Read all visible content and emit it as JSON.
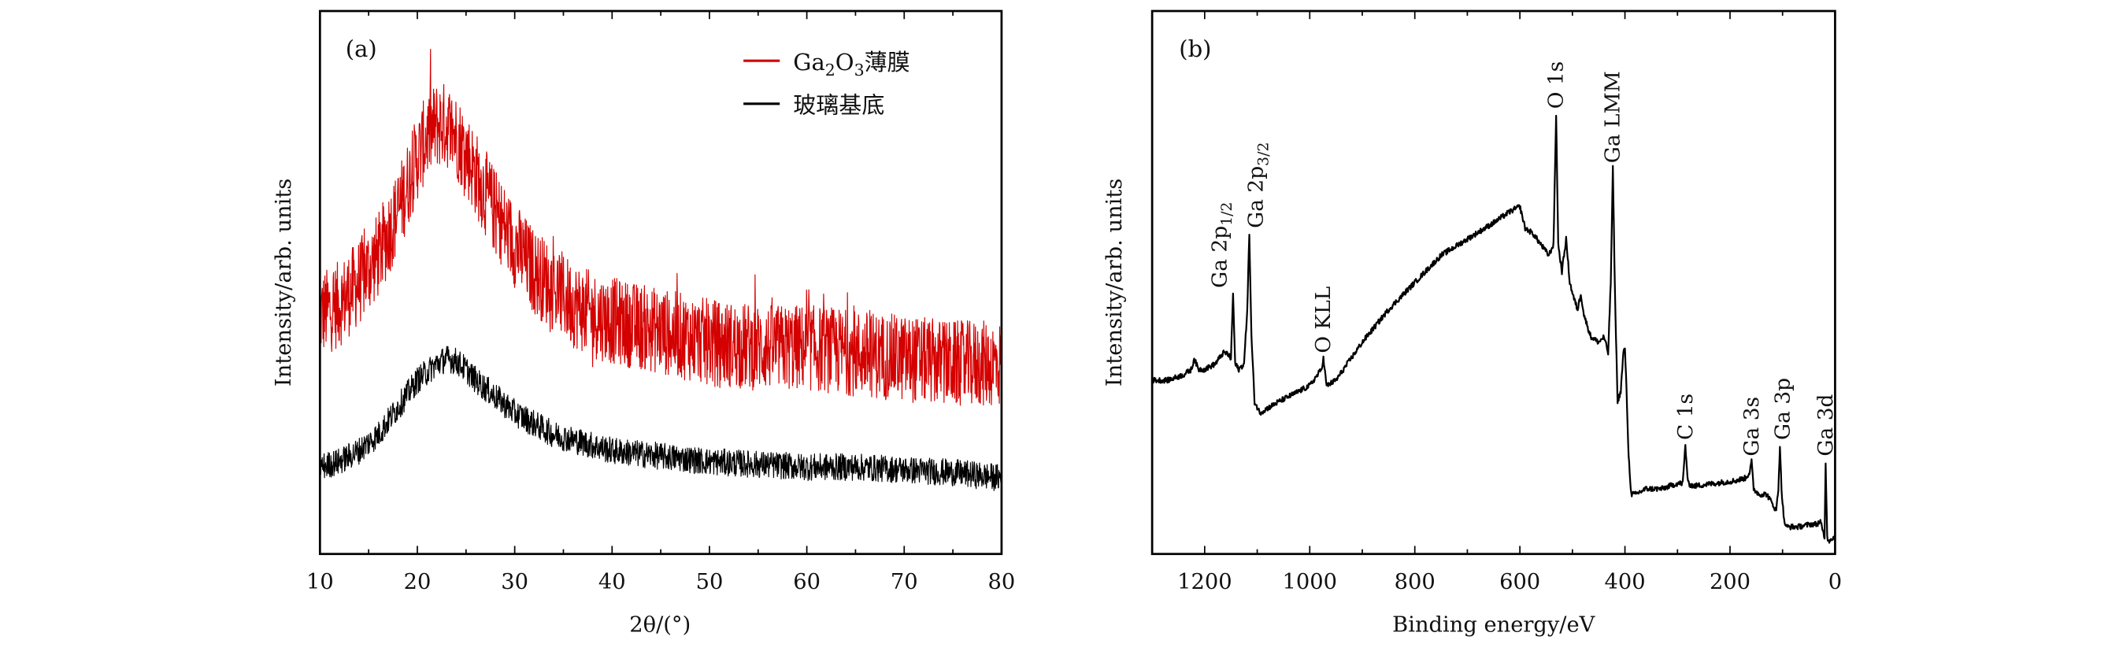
{
  "chart_data": [
    {
      "type": "line",
      "panel_label": "(a)",
      "xlabel": "2θ/(°)",
      "ylabel": "Intensity/arb. units",
      "xlim": [
        10,
        80
      ],
      "ylim": [
        0,
        100
      ],
      "x_ticks": [
        10,
        20,
        30,
        40,
        50,
        60,
        70,
        80
      ],
      "x_minor_step": 5,
      "y_ticks_shown": false,
      "grid": false,
      "legend_position": "top-right",
      "legend": [
        {
          "parts": [
            "Ga",
            "2",
            "O",
            "3",
            "薄膜"
          ],
          "color": "#d40000"
        },
        {
          "parts": [
            "玻璃基底"
          ],
          "color": "#000000"
        }
      ],
      "series": [
        {
          "name": "Ga2O3薄膜",
          "color": "#d40000",
          "noise_amplitude": 8,
          "x": [
            10,
            12,
            14,
            16,
            18,
            20,
            21,
            22,
            23,
            24,
            25,
            26,
            28,
            30,
            32,
            34,
            36,
            38,
            40,
            45,
            50,
            55,
            60,
            65,
            70,
            75,
            80
          ],
          "y": [
            44,
            46,
            50,
            55,
            63,
            73,
            77,
            79,
            79,
            77,
            74,
            70,
            63,
            57,
            52,
            49,
            46,
            44,
            43,
            41,
            39,
            38,
            38,
            37,
            36,
            35,
            35
          ]
        },
        {
          "name": "玻璃基底",
          "color": "#000000",
          "noise_amplitude": 2.5,
          "x": [
            10,
            12,
            14,
            16,
            18,
            20,
            22,
            23,
            24,
            25,
            26,
            28,
            30,
            32,
            34,
            36,
            38,
            40,
            45,
            50,
            55,
            60,
            65,
            70,
            75,
            80
          ],
          "y": [
            16,
            17,
            19,
            22,
            27,
            32,
            35,
            36,
            35.5,
            34,
            32,
            29,
            26,
            24,
            22,
            21,
            20,
            19,
            18,
            17,
            16.5,
            16,
            16,
            15.5,
            15,
            14
          ]
        }
      ]
    },
    {
      "type": "line",
      "panel_label": "(b)",
      "xlabel": "Binding energy/eV",
      "ylabel": "Intensity/arb. units",
      "xlim": [
        1300,
        0
      ],
      "ylim": [
        0,
        100
      ],
      "x_ticks": [
        1200,
        1000,
        800,
        600,
        400,
        200,
        0
      ],
      "x_minor_step": 100,
      "y_ticks_shown": false,
      "grid": false,
      "series": [
        {
          "color": "#000000",
          "noise_amplitude": 0.5,
          "x": [
            1300,
            1270,
            1240,
            1225,
            1220,
            1212,
            1200,
            1180,
            1165,
            1158,
            1150,
            1146,
            1142,
            1135,
            1125,
            1119,
            1115,
            1111,
            1105,
            1095,
            1060,
            1020,
            1000,
            985,
            978,
            974,
            968,
            950,
            900,
            850,
            800,
            750,
            700,
            650,
            620,
            600,
            595,
            590,
            575,
            560,
            545,
            536,
            531,
            527,
            520,
            512,
            505,
            497,
            490,
            484,
            478,
            465,
            450,
            440,
            432,
            427,
            423,
            419,
            414,
            408,
            403,
            400,
            397,
            393,
            388,
            380,
            360,
            330,
            300,
            290,
            285,
            280,
            270,
            230,
            190,
            170,
            163,
            159,
            155,
            145,
            130,
            118,
            112,
            108,
            105,
            102,
            97,
            92,
            70,
            45,
            35,
            28,
            23,
            20,
            18,
            15,
            11,
            5,
            0
          ],
          "y": [
            32,
            32,
            33,
            34,
            36,
            34,
            34,
            35,
            37,
            37,
            36,
            48,
            35,
            34,
            35,
            45,
            59,
            40,
            28,
            26,
            28,
            30,
            31,
            33,
            34,
            36,
            31,
            32,
            39,
            45,
            50,
            55,
            58,
            61,
            63,
            64,
            62,
            60,
            59,
            57,
            55,
            57,
            81,
            57,
            52,
            58,
            50,
            47,
            45,
            48,
            44,
            40,
            39,
            40,
            37,
            50,
            71,
            48,
            28,
            30,
            37,
            38,
            30,
            18,
            11,
            11,
            12,
            12,
            13,
            13,
            20,
            13,
            12.5,
            13,
            13.5,
            14,
            15,
            17,
            12,
            11,
            11,
            9,
            8,
            12,
            20,
            12,
            6,
            5,
            5,
            5.5,
            5.5,
            6,
            4,
            3,
            17,
            3,
            2.5,
            3,
            3
          ]
        }
      ],
      "annotations": [
        {
          "text": "Ga 2p",
          "sub": "1/2",
          "x": 1146,
          "y": 48,
          "dx": -10
        },
        {
          "text": "Ga 2p",
          "sub": "3/2",
          "x": 1115,
          "y": 59,
          "dx": 5
        },
        {
          "text": "O KLL",
          "sub": "",
          "x": 974,
          "y": 36,
          "dx": 0
        },
        {
          "text": "O 1s",
          "sub": "",
          "x": 531,
          "y": 81,
          "dx": 0
        },
        {
          "text": "Ga LMM",
          "sub": "",
          "x": 423,
          "y": 71,
          "dx": 0
        },
        {
          "text": "C 1s",
          "sub": "",
          "x": 285,
          "y": 20,
          "dx": 0
        },
        {
          "text": "Ga 3s",
          "sub": "",
          "x": 159,
          "y": 17,
          "dx": 0
        },
        {
          "text": "Ga 3p",
          "sub": "",
          "x": 105,
          "y": 20,
          "dx": 2
        },
        {
          "text": "Ga 3d",
          "sub": "",
          "x": 18,
          "y": 17,
          "dx": 0
        }
      ]
    }
  ]
}
